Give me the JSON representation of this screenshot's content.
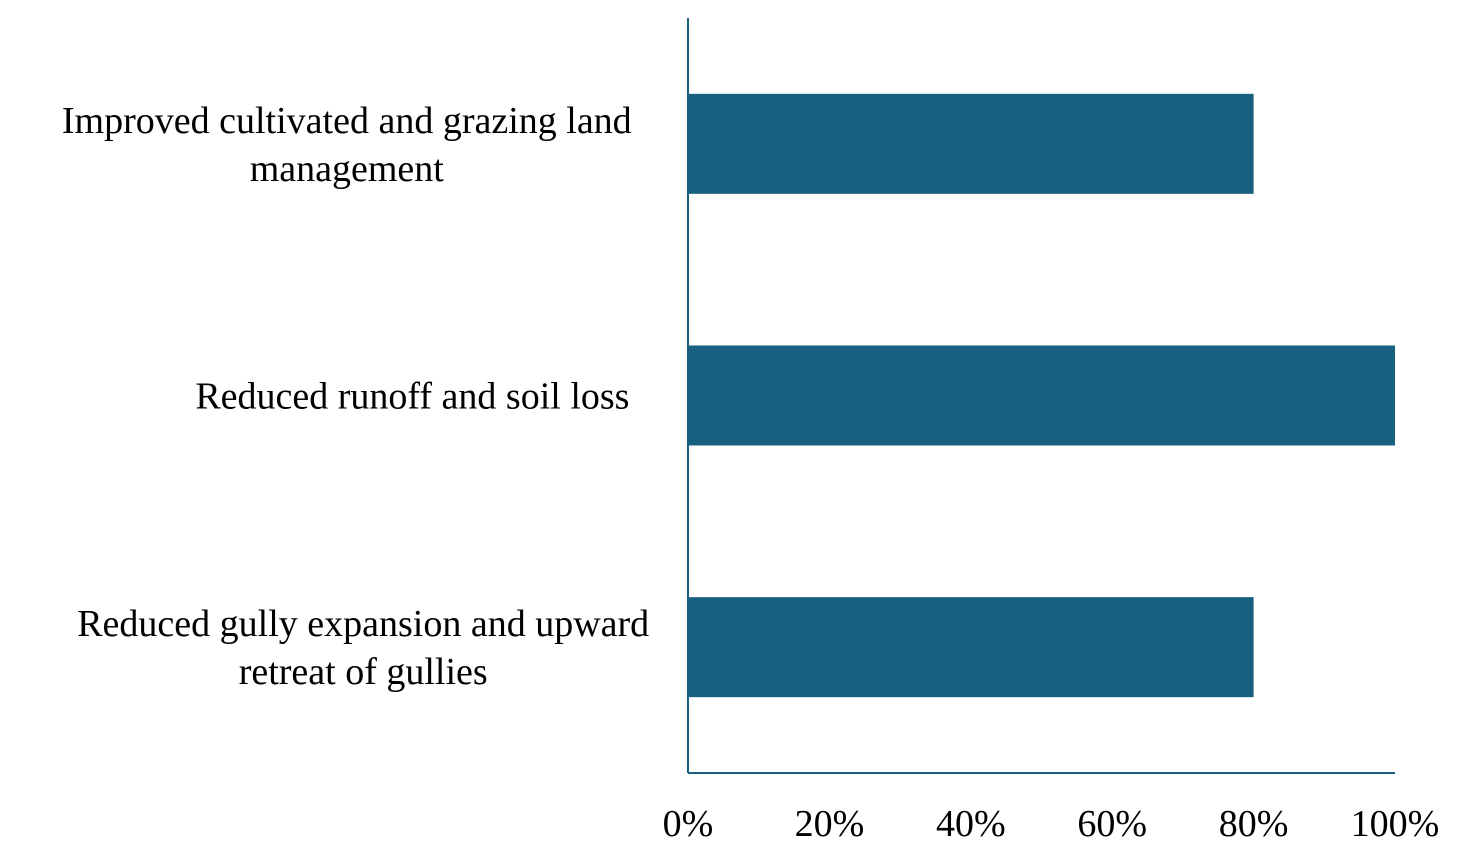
{
  "colors": {
    "bar": "#17607f",
    "axis": "#17607f"
  },
  "chart_data": {
    "type": "bar",
    "orientation": "horizontal",
    "categories": [
      [
        "Improved cultivated and grazing land",
        "management"
      ],
      [
        "Reduced runoff and soil loss"
      ],
      [
        "Reduced gully expansion and upward",
        "retreat of gullies"
      ]
    ],
    "values": [
      80,
      100,
      80
    ],
    "xlim": [
      0,
      100
    ],
    "xticks": [
      "0%",
      "20%",
      "40%",
      "60%",
      "80%",
      "100%"
    ],
    "grid": false,
    "legend": "none",
    "title": "",
    "xlabel": "",
    "ylabel": ""
  }
}
